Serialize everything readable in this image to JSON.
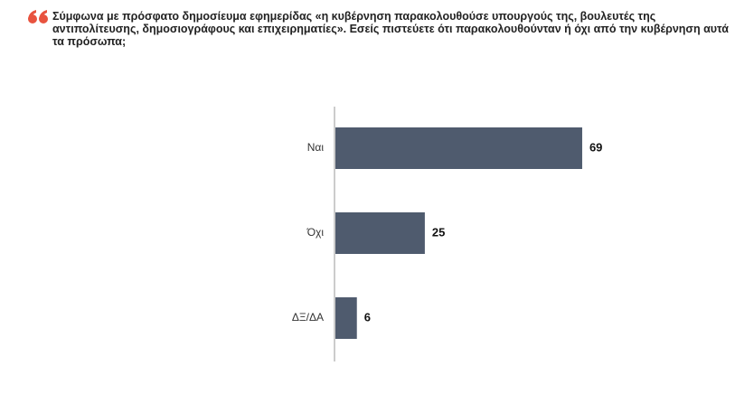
{
  "chart_data": {
    "type": "bar",
    "orientation": "horizontal",
    "title": "Σύμφωνα με πρόσφατο δημοσίευμα εφημερίδας «η κυβέρνηση παρακολουθούσε υπουργούς της, βουλευτές της αντιπολίτευσης, δημοσιογράφους και επιχειρηματίες». Εσείς πιστεύετε ότι παρακολουθούνταν ή όχι από την κυβέρνηση αυτά τα πρόσωπα;",
    "categories": [
      "Ναι",
      "Όχι",
      "ΔΞ/ΔΑ"
    ],
    "values": [
      69,
      25,
      6
    ],
    "color": "#4f5b6e"
  }
}
